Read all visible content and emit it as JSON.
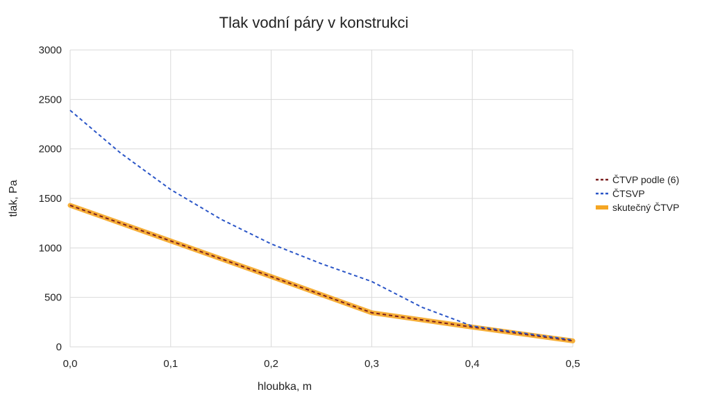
{
  "chart_data": {
    "type": "line",
    "title": "Tlak vodní páry v konstrukci",
    "xlabel": "hloubka, m",
    "ylabel": "tlak, Pa",
    "xlim": [
      0,
      0.5
    ],
    "ylim": [
      0,
      3000
    ],
    "x_ticks": [
      "0,0",
      "0,1",
      "0,2",
      "0,3",
      "0,4",
      "0,5"
    ],
    "y_ticks": [
      "0",
      "500",
      "1000",
      "1500",
      "2000",
      "2500",
      "3000"
    ],
    "grid": true,
    "legend_position": "right",
    "series": [
      {
        "name": "skutečný ČTVP",
        "color": "#f5a623",
        "style": "solid",
        "x": [
          0,
          0.1,
          0.2,
          0.3,
          0.4,
          0.5
        ],
        "y": [
          1430,
          1070,
          710,
          345,
          200,
          60
        ]
      },
      {
        "name": "ČTVP podle (6)",
        "color": "#7a1f1f",
        "style": "dashed",
        "x": [
          0,
          0.1,
          0.2,
          0.3,
          0.4,
          0.5
        ],
        "y": [
          1430,
          1070,
          710,
          345,
          200,
          60
        ]
      },
      {
        "name": "ČTSVP",
        "color": "#2a55c7",
        "style": "dashed",
        "x": [
          0,
          0.05,
          0.1,
          0.15,
          0.2,
          0.25,
          0.3,
          0.35,
          0.4,
          0.45,
          0.5
        ],
        "y": [
          2390,
          1960,
          1590,
          1290,
          1040,
          840,
          660,
          400,
          210,
          140,
          70
        ]
      }
    ],
    "legend_order": [
      1,
      2,
      0
    ]
  }
}
